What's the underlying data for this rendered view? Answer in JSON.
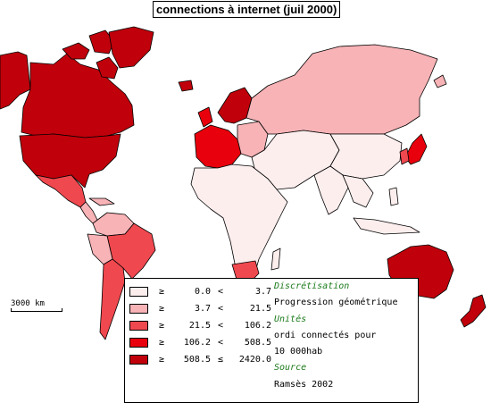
{
  "title": "connections à internet (juil 2000)",
  "scale_bar": "3000 km",
  "legend": {
    "classes": [
      {
        "symbol": "≥",
        "low": "0.0",
        "op": "<",
        "high": "3.7",
        "color": "#fdeeee"
      },
      {
        "symbol": "≥",
        "low": "3.7",
        "op": "<",
        "high": "21.5",
        "color": "#f8b3b6"
      },
      {
        "symbol": "≥",
        "low": "21.5",
        "op": "<",
        "high": "106.2",
        "color": "#f0484f"
      },
      {
        "symbol": "≥",
        "low": "106.2",
        "op": "<",
        "high": "508.5",
        "color": "#e8000c"
      },
      {
        "symbol": "≥",
        "low": "508.5",
        "op": "≤",
        "high": "2420.0",
        "color": "#c0000b"
      }
    ],
    "discretisation_label": "Discrétisation",
    "discretisation_value": "Progression géométrique",
    "unites_label": "Unités",
    "unites_line1": "ordi connectés pour",
    "unites_line2": "10 000hab",
    "source_label": "Source",
    "source_value": "Ramsès 2002"
  }
}
